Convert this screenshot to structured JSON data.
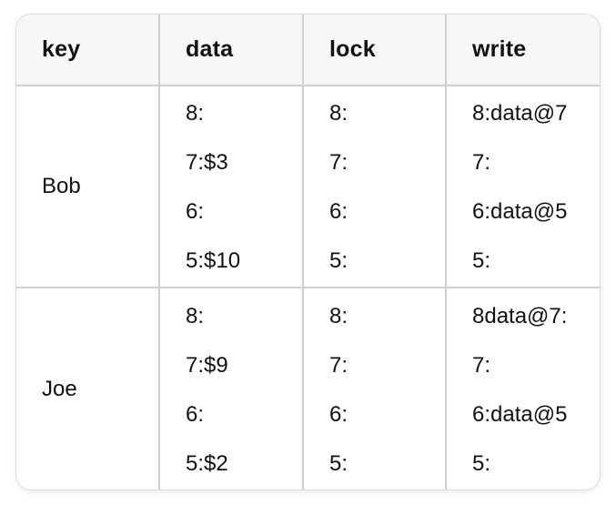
{
  "table": {
    "headers": [
      "key",
      "data",
      "lock",
      "write"
    ],
    "rows": [
      {
        "key": "Bob",
        "data": [
          "8:",
          "7:$3",
          "6:",
          "5:$10"
        ],
        "lock": [
          "8:",
          "7:",
          "6:",
          "5:"
        ],
        "write": [
          "8:data@7",
          "7:",
          "6:data@5",
          "5:"
        ]
      },
      {
        "key": "Joe",
        "data": [
          "8:",
          "7:$9",
          "6:",
          "5:$2"
        ],
        "lock": [
          "8:",
          "7:",
          "6:",
          "5:"
        ],
        "write": [
          "8data@7:",
          "7:",
          "6:data@5",
          "5:"
        ]
      }
    ]
  }
}
